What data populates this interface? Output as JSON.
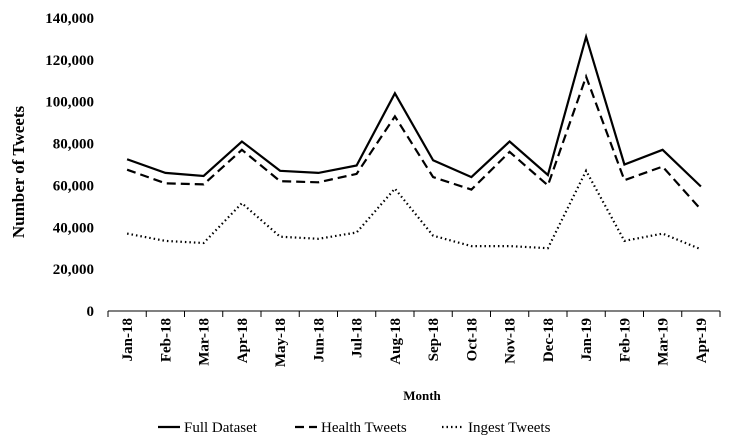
{
  "chart_data": {
    "type": "line",
    "title": "",
    "xlabel": "Month",
    "ylabel": "Number of Tweets",
    "ylim": [
      0,
      140000
    ],
    "yticks": [
      {
        "value": 0,
        "label": "0"
      },
      {
        "value": 20000,
        "label": "20,000"
      },
      {
        "value": 40000,
        "label": "40,000"
      },
      {
        "value": 60000,
        "label": "60,000"
      },
      {
        "value": 80000,
        "label": "80,000"
      },
      {
        "value": 100000,
        "label": "100,000"
      },
      {
        "value": 120000,
        "label": "120,000"
      },
      {
        "value": 140000,
        "label": "140,000"
      }
    ],
    "grid": false,
    "legend_position": "bottom",
    "categories": [
      "Jan-18",
      "Feb-18",
      "Mar-18",
      "Apr-18",
      "May-18",
      "Jun-18",
      "Jul-18",
      "Aug-18",
      "Sep-18",
      "Oct-18",
      "Nov-18",
      "Dec-18",
      "Jan-19",
      "Feb-19",
      "Mar-19",
      "Apr-19"
    ],
    "series": [
      {
        "name": "Full Dataset",
        "style": "solid",
        "values": [
          72500,
          66000,
          64500,
          81000,
          67000,
          66000,
          69500,
          104000,
          72000,
          64000,
          81000,
          65000,
          131000,
          70000,
          77000,
          59500
        ]
      },
      {
        "name": "Health Tweets",
        "style": "dashed",
        "values": [
          67500,
          61000,
          60500,
          77000,
          62000,
          61500,
          65500,
          93000,
          64000,
          58000,
          76000,
          60000,
          112000,
          62500,
          69000,
          48500
        ]
      },
      {
        "name": "Ingest Tweets",
        "style": "dotted",
        "values": [
          37000,
          33500,
          32500,
          51500,
          35500,
          34500,
          37500,
          58500,
          36000,
          31000,
          31000,
          30000,
          67000,
          33500,
          37000,
          29500
        ]
      }
    ]
  },
  "colors": {
    "line": "#000000",
    "axis": "#000000",
    "background": "#ffffff"
  }
}
